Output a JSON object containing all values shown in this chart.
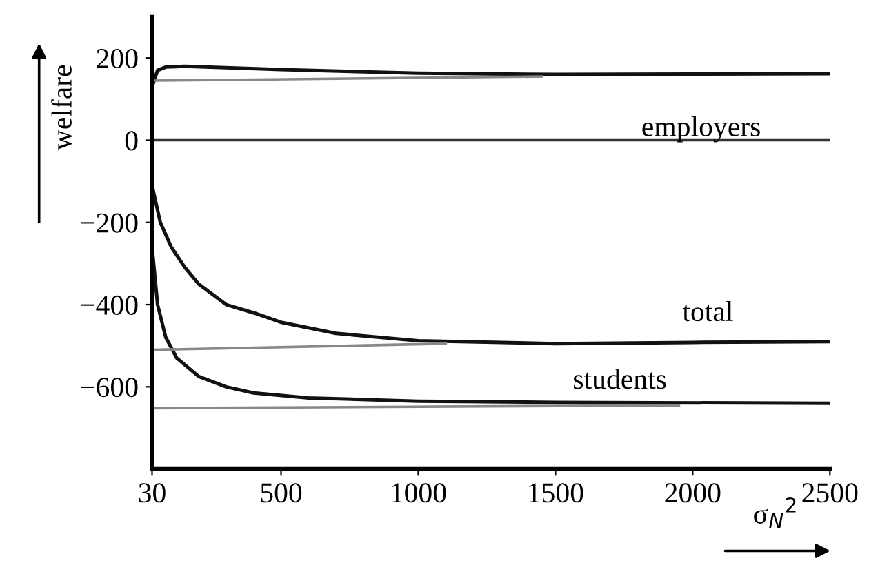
{
  "chart_data": {
    "type": "line",
    "xlabel": "σ$_{N}$$^{2}$",
    "ylabel": "welfare",
    "xlim": [
      30,
      2500
    ],
    "xticks": [
      30,
      500,
      1000,
      1500,
      2000,
      2500
    ],
    "ylim": [
      -800,
      300
    ],
    "yticks": [
      -600,
      -400,
      -200,
      0,
      200
    ],
    "grid": false,
    "marker": "none",
    "line_style": "solid",
    "series": [
      {
        "name": "employers",
        "color": "#111111",
        "x": [
          30,
          50,
          80,
          150,
          500,
          1000,
          1500,
          2000,
          2500
        ],
        "values": [
          130,
          170,
          178,
          180,
          172,
          163,
          160,
          161,
          162
        ]
      },
      {
        "name": "total",
        "color": "#111111",
        "x": [
          30,
          60,
          100,
          150,
          200,
          300,
          400,
          500,
          700,
          1000,
          1500,
          2000,
          2500
        ],
        "values": [
          -110,
          -200,
          -260,
          -310,
          -350,
          -400,
          -420,
          -443,
          -470,
          -488,
          -495,
          -492,
          -490
        ]
      },
      {
        "name": "students",
        "color": "#111111",
        "x": [
          30,
          50,
          80,
          120,
          200,
          300,
          400,
          600,
          1000,
          1500,
          2500
        ],
        "values": [
          -260,
          -400,
          -480,
          -530,
          -575,
          -600,
          -615,
          -627,
          -635,
          -638,
          -640
        ]
      },
      {
        "color": "#888888",
        "x": [
          30,
          1450
        ],
        "values": [
          145,
          155
        ]
      },
      {
        "color": "#888888",
        "x": [
          30,
          1100
        ],
        "values": [
          -510,
          -495
        ]
      },
      {
        "color": "#888888",
        "x": [
          30,
          1950
        ],
        "values": [
          -652,
          -645
        ]
      }
    ],
    "ref_lines": [
      {
        "axis": "y",
        "value": 0,
        "color": "#333333"
      }
    ]
  }
}
